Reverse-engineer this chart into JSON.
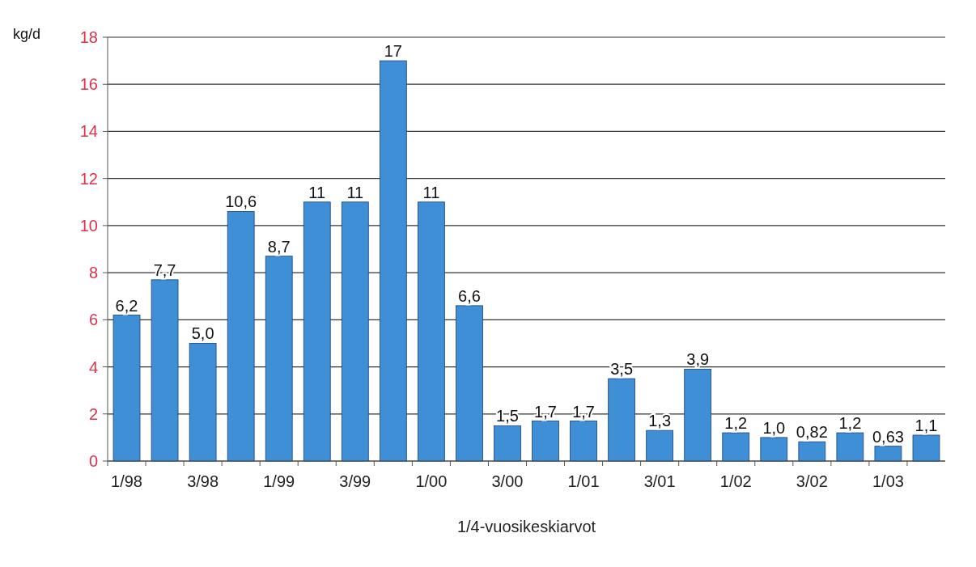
{
  "chart_data": {
    "type": "bar",
    "xlabel": "1/4-vuosikeskiarvot",
    "ylabel": "kg/d",
    "categories": [
      "1/98",
      null,
      "3/98",
      null,
      "1/99",
      null,
      "3/99",
      null,
      "1/00",
      null,
      "3/00",
      null,
      "1/01",
      null,
      "3/01",
      null,
      "1/02",
      null,
      "3/02",
      null,
      "1/03",
      null
    ],
    "values": [
      6.2,
      7.7,
      5.0,
      10.6,
      8.7,
      11,
      11,
      17,
      11,
      6.6,
      1.5,
      1.7,
      1.7,
      3.5,
      1.3,
      3.9,
      1.2,
      1.0,
      0.82,
      1.2,
      0.63,
      1.1
    ],
    "value_labels": [
      "6,2",
      "7,7",
      "5,0",
      "10,6",
      "8,7",
      "11",
      "11",
      "17",
      "11",
      "6,6",
      "1,5",
      "1,7",
      "1,7",
      "3,5",
      "1,3",
      "3,9",
      "1,2",
      "1,0",
      "0,82",
      "1,2",
      "0,63",
      "1,1"
    ],
    "color": "#3f8fd6",
    "ylim": [
      0,
      18
    ],
    "yticks": [
      0,
      2,
      4,
      6,
      8,
      10,
      12,
      14,
      16,
      18
    ],
    "grid": "y"
  }
}
